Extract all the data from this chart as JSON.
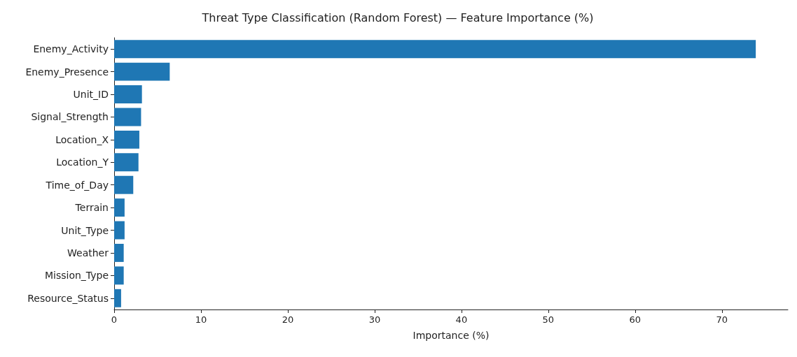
{
  "chart_data": {
    "type": "bar",
    "orientation": "horizontal",
    "title": "Threat Type Classification (Random Forest) — Feature Importance (%)",
    "xlabel": "Importance (%)",
    "categories": [
      "Enemy_Activity",
      "Enemy_Presence",
      "Unit_ID",
      "Signal_Strength",
      "Location_X",
      "Location_Y",
      "Time_of_Day",
      "Terrain",
      "Unit_Type",
      "Weather",
      "Mission_Type",
      "Resource_Status"
    ],
    "values": [
      73.9,
      6.4,
      3.2,
      3.1,
      2.9,
      2.8,
      2.2,
      1.2,
      1.2,
      1.1,
      1.1,
      0.8
    ],
    "color": "#1f77b4",
    "xlim": [
      0,
      77.6
    ],
    "xticks": [
      0,
      10,
      20,
      30,
      40,
      50,
      60,
      70
    ],
    "grid": false
  }
}
